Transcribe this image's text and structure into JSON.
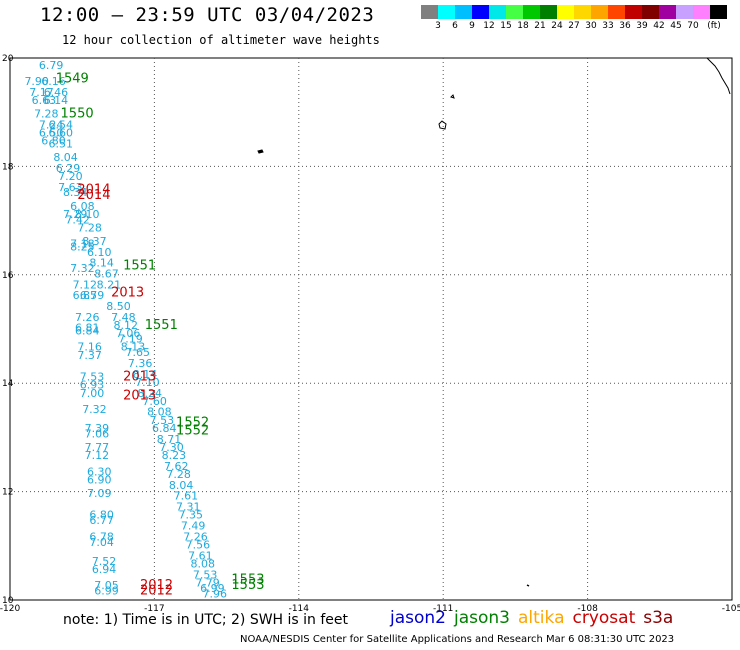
{
  "header": {
    "title": "12:00 — 23:59 UTC 03/04/2023",
    "subtitle": "12 hour collection of altimeter wave heights"
  },
  "legend": {
    "colors": [
      "#808080",
      "#00ffff",
      "#00bfff",
      "#0000ff",
      "#00e8e8",
      "#44ff44",
      "#00c800",
      "#008000",
      "#ffff00",
      "#ffd700",
      "#ffa500",
      "#ff4500",
      "#c00000",
      "#800000",
      "#a000a0",
      "#c8a0ff",
      "#ff80ff",
      "#000000"
    ],
    "labels": [
      "3",
      "6",
      "9",
      "12",
      "15",
      "18",
      "21",
      "24",
      "27",
      "30",
      "33",
      "36",
      "39",
      "42",
      "45",
      "70",
      "(ft)"
    ]
  },
  "map": {
    "lon_range": [
      -120,
      -105
    ],
    "lat_range": [
      10,
      20
    ],
    "x_ticks": [
      "-120",
      "-117",
      "-114",
      "-111",
      "-108",
      "-105"
    ],
    "y_ticks": [
      "20",
      "18",
      "16",
      "14",
      "12",
      "10"
    ],
    "blue_color": "#1eaadc",
    "labels_blue": [
      {
        "lon": -119.4,
        "lat": 19.8,
        "t": "6.79"
      },
      {
        "lon": -119.7,
        "lat": 19.5,
        "t": "7.90"
      },
      {
        "lon": -119.35,
        "lat": 19.5,
        "t": "6.16"
      },
      {
        "lon": -119.6,
        "lat": 19.3,
        "t": "7.17"
      },
      {
        "lon": -119.3,
        "lat": 19.3,
        "t": "6.46"
      },
      {
        "lon": -119.55,
        "lat": 19.15,
        "t": "6.63"
      },
      {
        "lon": -119.3,
        "lat": 19.15,
        "t": "6.14"
      },
      {
        "lon": -119.5,
        "lat": 18.9,
        "t": "7.28"
      },
      {
        "lon": -119.4,
        "lat": 18.7,
        "t": "7.24"
      },
      {
        "lon": -119.2,
        "lat": 18.7,
        "t": "6.54"
      },
      {
        "lon": -119.4,
        "lat": 18.55,
        "t": "6.50"
      },
      {
        "lon": -119.2,
        "lat": 18.55,
        "t": "6.60"
      },
      {
        "lon": -119.35,
        "lat": 18.4,
        "t": "6.80"
      },
      {
        "lon": -119.2,
        "lat": 18.35,
        "t": "6.51"
      },
      {
        "lon": -119.1,
        "lat": 18.1,
        "t": "8.04"
      },
      {
        "lon": -119.05,
        "lat": 17.9,
        "t": "6.29"
      },
      {
        "lon": -119.0,
        "lat": 17.75,
        "t": "7.20"
      },
      {
        "lon": -119.0,
        "lat": 17.55,
        "t": "7.63"
      },
      {
        "lon": -118.9,
        "lat": 17.45,
        "t": "8.34"
      },
      {
        "lon": -118.75,
        "lat": 17.2,
        "t": "6.08"
      },
      {
        "lon": -118.9,
        "lat": 17.05,
        "t": "7.29"
      },
      {
        "lon": -118.65,
        "lat": 17.05,
        "t": "8.10"
      },
      {
        "lon": -118.85,
        "lat": 16.95,
        "t": "7.42"
      },
      {
        "lon": -118.6,
        "lat": 16.8,
        "t": "7.28"
      },
      {
        "lon": -118.75,
        "lat": 16.5,
        "t": "7.18"
      },
      {
        "lon": -118.5,
        "lat": 16.55,
        "t": "8.37"
      },
      {
        "lon": -118.75,
        "lat": 16.45,
        "t": "8.25"
      },
      {
        "lon": -118.4,
        "lat": 16.35,
        "t": "6.10"
      },
      {
        "lon": -118.35,
        "lat": 16.15,
        "t": "8.14"
      },
      {
        "lon": -118.75,
        "lat": 16.05,
        "t": "7.32"
      },
      {
        "lon": -118.25,
        "lat": 15.95,
        "t": "8.67"
      },
      {
        "lon": -118.7,
        "lat": 15.75,
        "t": "7.12"
      },
      {
        "lon": -118.2,
        "lat": 15.75,
        "t": "8.21"
      },
      {
        "lon": -118.7,
        "lat": 15.55,
        "t": "6.85"
      },
      {
        "lon": -118.55,
        "lat": 15.55,
        "t": "6.79"
      },
      {
        "lon": -118.0,
        "lat": 15.35,
        "t": "8.50"
      },
      {
        "lon": -118.65,
        "lat": 15.15,
        "t": "7.26"
      },
      {
        "lon": -117.9,
        "lat": 15.15,
        "t": "7.48"
      },
      {
        "lon": -118.65,
        "lat": 14.95,
        "t": "6.81"
      },
      {
        "lon": -117.85,
        "lat": 15.0,
        "t": "8.12"
      },
      {
        "lon": -118.65,
        "lat": 14.9,
        "t": "6.84"
      },
      {
        "lon": -117.8,
        "lat": 14.85,
        "t": "7.06"
      },
      {
        "lon": -117.75,
        "lat": 14.75,
        "t": "7.19"
      },
      {
        "lon": -118.6,
        "lat": 14.6,
        "t": "7.16"
      },
      {
        "lon": -117.7,
        "lat": 14.6,
        "t": "8.13"
      },
      {
        "lon": -118.6,
        "lat": 14.45,
        "t": "7.37"
      },
      {
        "lon": -117.6,
        "lat": 14.5,
        "t": "7.65"
      },
      {
        "lon": -117.55,
        "lat": 14.3,
        "t": "7.36"
      },
      {
        "lon": -118.55,
        "lat": 14.05,
        "t": "7.53"
      },
      {
        "lon": -117.45,
        "lat": 14.1,
        "t": "8.14"
      },
      {
        "lon": -118.55,
        "lat": 13.9,
        "t": "6.93"
      },
      {
        "lon": -117.4,
        "lat": 13.95,
        "t": "7.10"
      },
      {
        "lon": -118.55,
        "lat": 13.75,
        "t": "7.00"
      },
      {
        "lon": -117.35,
        "lat": 13.75,
        "t": "8.24"
      },
      {
        "lon": -117.25,
        "lat": 13.6,
        "t": "7.60"
      },
      {
        "lon": -118.5,
        "lat": 13.45,
        "t": "7.32"
      },
      {
        "lon": -117.15,
        "lat": 13.4,
        "t": "8.08"
      },
      {
        "lon": -117.1,
        "lat": 13.25,
        "t": "7.53"
      },
      {
        "lon": -118.45,
        "lat": 13.1,
        "t": "7.39"
      },
      {
        "lon": -117.05,
        "lat": 13.1,
        "t": "6.84"
      },
      {
        "lon": -118.45,
        "lat": 13.0,
        "t": "7.06"
      },
      {
        "lon": -116.95,
        "lat": 12.9,
        "t": "8.71"
      },
      {
        "lon": -118.45,
        "lat": 12.75,
        "t": "7.77"
      },
      {
        "lon": -116.9,
        "lat": 12.75,
        "t": "7.30"
      },
      {
        "lon": -118.45,
        "lat": 12.6,
        "t": "7.12"
      },
      {
        "lon": -116.85,
        "lat": 12.6,
        "t": "8.23"
      },
      {
        "lon": -116.8,
        "lat": 12.4,
        "t": "7.62"
      },
      {
        "lon": -118.4,
        "lat": 12.3,
        "t": "6.30"
      },
      {
        "lon": -116.75,
        "lat": 12.25,
        "t": "7.28"
      },
      {
        "lon": -118.4,
        "lat": 12.15,
        "t": "6.90"
      },
      {
        "lon": -116.7,
        "lat": 12.05,
        "t": "8.04"
      },
      {
        "lon": -118.4,
        "lat": 11.9,
        "t": "7.09"
      },
      {
        "lon": -116.6,
        "lat": 11.85,
        "t": "7.61"
      },
      {
        "lon": -116.55,
        "lat": 11.65,
        "t": "7.31"
      },
      {
        "lon": -118.35,
        "lat": 11.5,
        "t": "6.80"
      },
      {
        "lon": -116.5,
        "lat": 11.5,
        "t": "7.35"
      },
      {
        "lon": -118.35,
        "lat": 11.4,
        "t": "6.77"
      },
      {
        "lon": -116.45,
        "lat": 11.3,
        "t": "7.49"
      },
      {
        "lon": -116.4,
        "lat": 11.1,
        "t": "7.26"
      },
      {
        "lon": -118.35,
        "lat": 11.1,
        "t": "6.78"
      },
      {
        "lon": -118.35,
        "lat": 11.0,
        "t": "7.04"
      },
      {
        "lon": -116.35,
        "lat": 10.95,
        "t": "7.56"
      },
      {
        "lon": -116.3,
        "lat": 10.75,
        "t": "7.61"
      },
      {
        "lon": -118.3,
        "lat": 10.65,
        "t": "7.52"
      },
      {
        "lon": -116.25,
        "lat": 10.6,
        "t": "8.08"
      },
      {
        "lon": -118.3,
        "lat": 10.5,
        "t": "6.94"
      },
      {
        "lon": -116.2,
        "lat": 10.4,
        "t": "7.53"
      },
      {
        "lon": -116.15,
        "lat": 10.25,
        "t": "7.79"
      },
      {
        "lon": -118.25,
        "lat": 10.2,
        "t": "7.05"
      },
      {
        "lon": -116.05,
        "lat": 10.15,
        "t": "6.99"
      },
      {
        "lon": -118.25,
        "lat": 10.1,
        "t": "6.99"
      },
      {
        "lon": -116.0,
        "lat": 10.05,
        "t": "7.96"
      }
    ],
    "labels_red": [
      {
        "lon": -118.6,
        "lat": 17.5,
        "t": "2014"
      },
      {
        "lon": -118.6,
        "lat": 17.4,
        "t": "2014"
      },
      {
        "lon": -117.9,
        "lat": 15.6,
        "t": "2013"
      },
      {
        "lon": -117.65,
        "lat": 14.05,
        "t": "2013"
      },
      {
        "lon": -117.65,
        "lat": 13.7,
        "t": "2013"
      },
      {
        "lon": -117.3,
        "lat": 10.2,
        "t": "2012"
      },
      {
        "lon": -117.3,
        "lat": 10.1,
        "t": "2012"
      }
    ],
    "labels_green": [
      {
        "lon": -119.05,
        "lat": 19.55,
        "t": "1549"
      },
      {
        "lon": -118.95,
        "lat": 18.9,
        "t": "1550"
      },
      {
        "lon": -117.65,
        "lat": 16.1,
        "t": "1551"
      },
      {
        "lon": -117.2,
        "lat": 15.0,
        "t": "1551"
      },
      {
        "lon": -116.55,
        "lat": 13.2,
        "t": "1552"
      },
      {
        "lon": -116.55,
        "lat": 13.05,
        "t": "1552"
      },
      {
        "lon": -115.4,
        "lat": 10.3,
        "t": "1553"
      },
      {
        "lon": -115.4,
        "lat": 10.2,
        "t": "1553"
      }
    ]
  },
  "footer": {
    "note": "note:  1) Time is in UTC;  2) SWH is in feet",
    "satellites": [
      {
        "name": "jason2",
        "color": "#0000cc"
      },
      {
        "name": "jason3",
        "color": "#008000"
      },
      {
        "name": "altika",
        "color": "#ffa500"
      },
      {
        "name": "cryosat",
        "color": "#cc0000"
      },
      {
        "name": "s3a",
        "color": "#8b0000"
      }
    ],
    "credit": "NOAA/NESDIS Center for Satellite Applications and Research    Mar  6 08:31:30 UTC 2023"
  }
}
